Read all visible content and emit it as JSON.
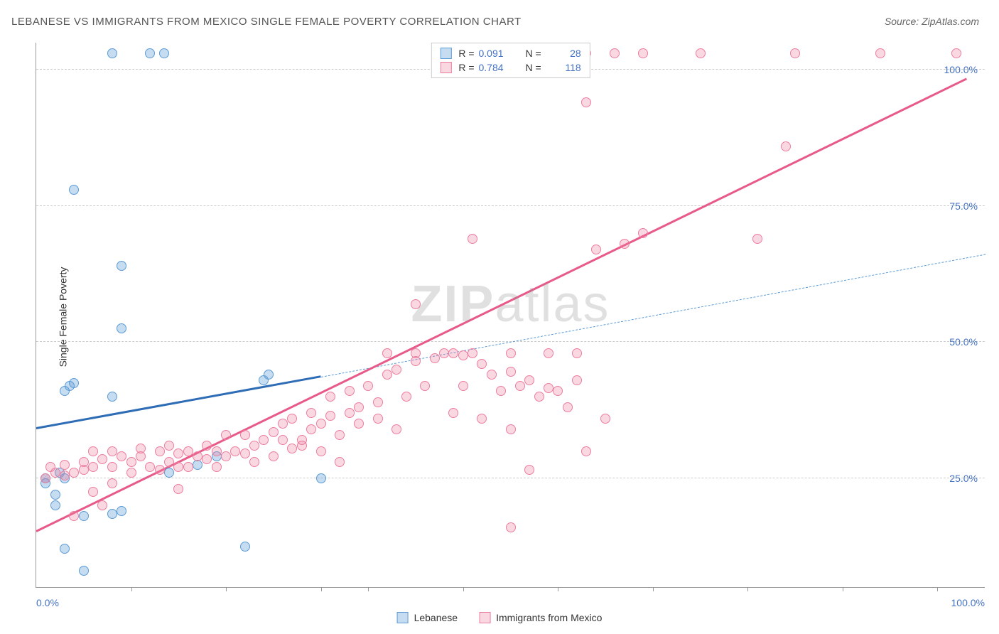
{
  "title": "LEBANESE VS IMMIGRANTS FROM MEXICO SINGLE FEMALE POVERTY CORRELATION CHART",
  "source_label": "Source:",
  "source_name": "ZipAtlas.com",
  "y_axis_label": "Single Female Poverty",
  "watermark_part1": "ZIP",
  "watermark_part2": "atlas",
  "series": [
    {
      "name": "Lebanese",
      "label": "Lebanese",
      "fill_color": "rgba(91,155,213,0.35)",
      "stroke_color": "#5b9bd5",
      "solid_line_color": "#2e6db5",
      "dash_line_color": "#5b9bd5",
      "r_value": "0.091",
      "n_value": "28",
      "point_radius": 7,
      "regression": {
        "x1": 0,
        "y1": 34,
        "x2_solid": 30,
        "y2_solid": 43.5,
        "x2_dash": 100,
        "y2_dash": 66
      },
      "points": [
        {
          "x": 1,
          "y": 24
        },
        {
          "x": 1,
          "y": 25
        },
        {
          "x": 2,
          "y": 22
        },
        {
          "x": 2.5,
          "y": 26
        },
        {
          "x": 3,
          "y": 25
        },
        {
          "x": 2,
          "y": 20
        },
        {
          "x": 3.5,
          "y": 42
        },
        {
          "x": 4,
          "y": 42.5
        },
        {
          "x": 3,
          "y": 41
        },
        {
          "x": 8,
          "y": 103
        },
        {
          "x": 12,
          "y": 103
        },
        {
          "x": 13.5,
          "y": 103
        },
        {
          "x": 4,
          "y": 78
        },
        {
          "x": 9,
          "y": 64
        },
        {
          "x": 9,
          "y": 52.5
        },
        {
          "x": 5,
          "y": 18
        },
        {
          "x": 8,
          "y": 18.5
        },
        {
          "x": 9,
          "y": 19
        },
        {
          "x": 3,
          "y": 12
        },
        {
          "x": 22,
          "y": 12.5
        },
        {
          "x": 5,
          "y": 8
        },
        {
          "x": 14,
          "y": 26
        },
        {
          "x": 17,
          "y": 27.5
        },
        {
          "x": 19,
          "y": 29
        },
        {
          "x": 24,
          "y": 43
        },
        {
          "x": 24.5,
          "y": 44
        },
        {
          "x": 30,
          "y": 25
        },
        {
          "x": 8,
          "y": 40
        }
      ]
    },
    {
      "name": "Immigrants from Mexico",
      "label": "Immigrants from Mexico",
      "fill_color": "rgba(237,125,158,0.3)",
      "stroke_color": "#ed7d9e",
      "solid_line_color": "#e85a8a",
      "r_value": "0.784",
      "n_value": "118",
      "point_radius": 7,
      "regression": {
        "x1": 0,
        "y1": 15,
        "x2_solid": 98,
        "y2_solid": 98
      },
      "points": [
        {
          "x": 1,
          "y": 25
        },
        {
          "x": 2,
          "y": 26
        },
        {
          "x": 3,
          "y": 25.5
        },
        {
          "x": 4,
          "y": 26
        },
        {
          "x": 5,
          "y": 26.5
        },
        {
          "x": 3,
          "y": 27.5
        },
        {
          "x": 5,
          "y": 28
        },
        {
          "x": 6,
          "y": 27
        },
        {
          "x": 7,
          "y": 28.5
        },
        {
          "x": 8,
          "y": 27
        },
        {
          "x": 6,
          "y": 30
        },
        {
          "x": 8,
          "y": 30
        },
        {
          "x": 9,
          "y": 29
        },
        {
          "x": 10,
          "y": 28
        },
        {
          "x": 11,
          "y": 29
        },
        {
          "x": 10,
          "y": 26
        },
        {
          "x": 12,
          "y": 27
        },
        {
          "x": 13,
          "y": 26.5
        },
        {
          "x": 14,
          "y": 28
        },
        {
          "x": 15,
          "y": 27
        },
        {
          "x": 11,
          "y": 30.5
        },
        {
          "x": 13,
          "y": 30
        },
        {
          "x": 14,
          "y": 31
        },
        {
          "x": 15,
          "y": 29.5
        },
        {
          "x": 16,
          "y": 30
        },
        {
          "x": 16,
          "y": 27
        },
        {
          "x": 17,
          "y": 29
        },
        {
          "x": 18,
          "y": 28.5
        },
        {
          "x": 19,
          "y": 30
        },
        {
          "x": 20,
          "y": 29
        },
        {
          "x": 18,
          "y": 31
        },
        {
          "x": 19,
          "y": 27
        },
        {
          "x": 21,
          "y": 30
        },
        {
          "x": 22,
          "y": 29.5
        },
        {
          "x": 23,
          "y": 31
        },
        {
          "x": 20,
          "y": 33
        },
        {
          "x": 22,
          "y": 33
        },
        {
          "x": 24,
          "y": 32
        },
        {
          "x": 25,
          "y": 33.5
        },
        {
          "x": 26,
          "y": 32
        },
        {
          "x": 23,
          "y": 28
        },
        {
          "x": 25,
          "y": 29
        },
        {
          "x": 27,
          "y": 30.5
        },
        {
          "x": 28,
          "y": 32
        },
        {
          "x": 29,
          "y": 34
        },
        {
          "x": 26,
          "y": 35
        },
        {
          "x": 27,
          "y": 36
        },
        {
          "x": 29,
          "y": 37
        },
        {
          "x": 30,
          "y": 35
        },
        {
          "x": 31,
          "y": 36.5
        },
        {
          "x": 28,
          "y": 31
        },
        {
          "x": 30,
          "y": 30
        },
        {
          "x": 32,
          "y": 33
        },
        {
          "x": 33,
          "y": 37
        },
        {
          "x": 34,
          "y": 38
        },
        {
          "x": 31,
          "y": 40
        },
        {
          "x": 33,
          "y": 41
        },
        {
          "x": 35,
          "y": 42
        },
        {
          "x": 36,
          "y": 39
        },
        {
          "x": 37,
          "y": 44
        },
        {
          "x": 34,
          "y": 35
        },
        {
          "x": 36,
          "y": 36
        },
        {
          "x": 38,
          "y": 45
        },
        {
          "x": 39,
          "y": 40
        },
        {
          "x": 40,
          "y": 46.5
        },
        {
          "x": 37,
          "y": 48
        },
        {
          "x": 40,
          "y": 48
        },
        {
          "x": 41,
          "y": 42
        },
        {
          "x": 42,
          "y": 47
        },
        {
          "x": 43,
          "y": 48
        },
        {
          "x": 40,
          "y": 57
        },
        {
          "x": 44,
          "y": 48
        },
        {
          "x": 45,
          "y": 47.5
        },
        {
          "x": 46,
          "y": 48
        },
        {
          "x": 47,
          "y": 46
        },
        {
          "x": 45,
          "y": 42
        },
        {
          "x": 48,
          "y": 44
        },
        {
          "x": 49,
          "y": 41
        },
        {
          "x": 50,
          "y": 44.5
        },
        {
          "x": 51,
          "y": 42
        },
        {
          "x": 46,
          "y": 69
        },
        {
          "x": 50,
          "y": 48
        },
        {
          "x": 52,
          "y": 43
        },
        {
          "x": 53,
          "y": 40
        },
        {
          "x": 54,
          "y": 41.5
        },
        {
          "x": 50,
          "y": 34
        },
        {
          "x": 54,
          "y": 48
        },
        {
          "x": 55,
          "y": 41
        },
        {
          "x": 56,
          "y": 38
        },
        {
          "x": 57,
          "y": 43
        },
        {
          "x": 52,
          "y": 26.5
        },
        {
          "x": 57,
          "y": 48
        },
        {
          "x": 58,
          "y": 30
        },
        {
          "x": 59,
          "y": 67
        },
        {
          "x": 60,
          "y": 36
        },
        {
          "x": 58,
          "y": 94
        },
        {
          "x": 62,
          "y": 68
        },
        {
          "x": 64,
          "y": 70
        },
        {
          "x": 50,
          "y": 16
        },
        {
          "x": 47,
          "y": 36
        },
        {
          "x": 4,
          "y": 18
        },
        {
          "x": 7,
          "y": 20
        },
        {
          "x": 32,
          "y": 28
        },
        {
          "x": 38,
          "y": 34
        },
        {
          "x": 44,
          "y": 37
        },
        {
          "x": 58,
          "y": 103
        },
        {
          "x": 61,
          "y": 103
        },
        {
          "x": 64,
          "y": 103
        },
        {
          "x": 70,
          "y": 103
        },
        {
          "x": 80,
          "y": 103
        },
        {
          "x": 89,
          "y": 103
        },
        {
          "x": 97,
          "y": 103
        },
        {
          "x": 76,
          "y": 69
        },
        {
          "x": 79,
          "y": 86
        },
        {
          "x": 15,
          "y": 23
        },
        {
          "x": 8,
          "y": 24
        },
        {
          "x": 6,
          "y": 22.5
        },
        {
          "x": 1.5,
          "y": 27
        }
      ]
    }
  ],
  "y_ticks": [
    {
      "value": 25,
      "label": "25.0%"
    },
    {
      "value": 50,
      "label": "50.0%"
    },
    {
      "value": 75,
      "label": "75.0%"
    },
    {
      "value": 100,
      "label": "100.0%"
    }
  ],
  "x_ticks": [
    {
      "value": 0,
      "label": "0.0%"
    },
    {
      "value": 100,
      "label": "100.0%"
    }
  ],
  "x_minor_ticks": [
    10,
    20,
    30,
    35,
    45,
    55,
    65,
    75,
    85,
    95
  ],
  "plot": {
    "xlim": [
      0,
      100
    ],
    "ylim": [
      5,
      105
    ],
    "background_color": "#ffffff",
    "grid_color": "#cccccc"
  },
  "legend_r_label": "R =",
  "legend_n_label": "N ="
}
